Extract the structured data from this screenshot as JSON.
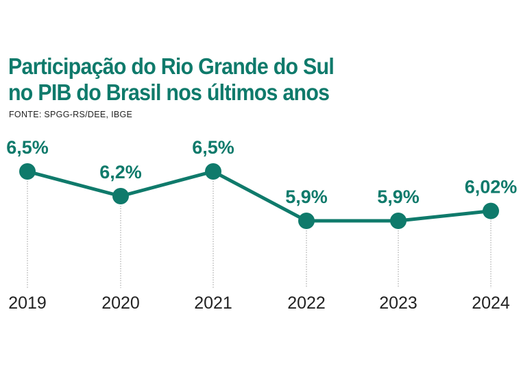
{
  "chart_data": {
    "type": "line",
    "title_lines": [
      "Participação do Rio Grande do Sul",
      "no PIB do Brasil nos últimos anos"
    ],
    "source": "FONTE: SPGG-RS/DEE, IBGE",
    "categories": [
      "2019",
      "2020",
      "2021",
      "2022",
      "2023",
      "2024"
    ],
    "values": [
      6.5,
      6.2,
      6.5,
      5.9,
      5.9,
      6.02
    ],
    "labels": [
      "6,5%",
      "6,2%",
      "6,5%",
      "5,9%",
      "5,9%",
      "6,02%"
    ],
    "color": "#0f7a6b",
    "grid": false
  }
}
